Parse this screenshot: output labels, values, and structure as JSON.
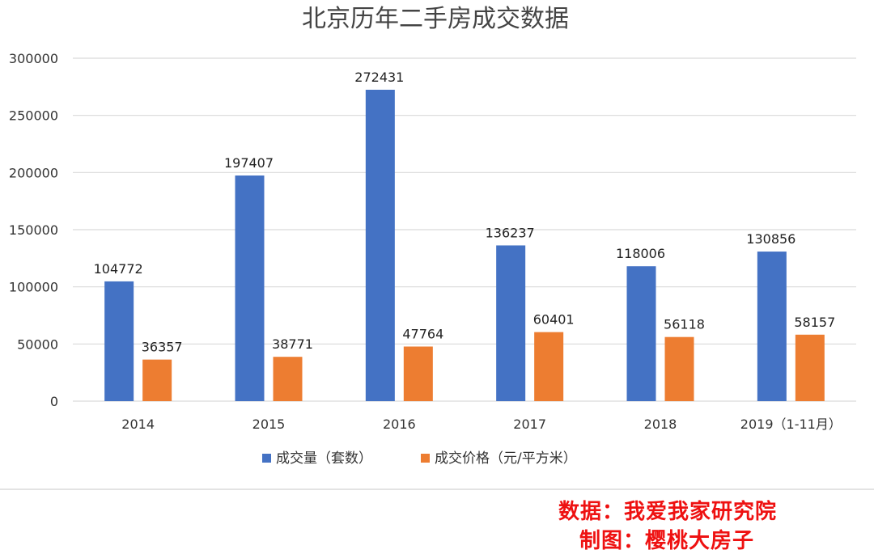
{
  "chart_data": {
    "type": "bar",
    "title": "北京历年二手房成交数据",
    "categories": [
      "2014",
      "2015",
      "2016",
      "2017",
      "2018",
      "2019（1-11月）"
    ],
    "series": [
      {
        "name": "成交量（套数）",
        "color": "#4472c4",
        "values": [
          104772,
          197407,
          272431,
          136237,
          118006,
          130856
        ]
      },
      {
        "name": "成交价格（元/平方米）",
        "color": "#ed7d31",
        "values": [
          36357,
          38771,
          47764,
          60401,
          56118,
          58157
        ]
      }
    ],
    "yticks": [
      "0",
      "50000",
      "100000",
      "150000",
      "200000",
      "250000",
      "300000"
    ],
    "ylim": [
      0,
      300000
    ],
    "grid": true,
    "legend_position": "bottom",
    "xlabel": "",
    "ylabel": ""
  },
  "credits": {
    "source": "数据：我爱我家研究院",
    "author": "制图：樱桃大房子"
  }
}
